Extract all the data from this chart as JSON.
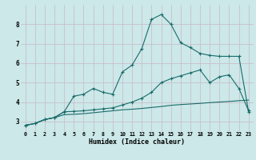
{
  "xlabel": "Humidex (Indice chaleur)",
  "bg_color": "#cce8e8",
  "grid_color": "#c8b8c8",
  "line_color": "#1a6b6b",
  "xlim": [
    -0.5,
    23.5
  ],
  "ylim": [
    2.5,
    9.0
  ],
  "yticks": [
    3,
    4,
    5,
    6,
    7,
    8
  ],
  "xticks": [
    0,
    1,
    2,
    3,
    4,
    5,
    6,
    7,
    8,
    9,
    10,
    11,
    12,
    13,
    14,
    15,
    16,
    17,
    18,
    19,
    20,
    21,
    22,
    23
  ],
  "line1_x": [
    0,
    1,
    2,
    3,
    4,
    5,
    6,
    7,
    8,
    9,
    10,
    11,
    12,
    13,
    14,
    15,
    16,
    17,
    18,
    19,
    20,
    21,
    22,
    23
  ],
  "line1_y": [
    2.8,
    2.9,
    3.1,
    3.2,
    3.35,
    3.37,
    3.4,
    3.45,
    3.5,
    3.55,
    3.6,
    3.63,
    3.67,
    3.72,
    3.77,
    3.83,
    3.87,
    3.9,
    3.93,
    3.97,
    4.0,
    4.03,
    4.07,
    4.1
  ],
  "line2_x": [
    0,
    1,
    2,
    3,
    4,
    5,
    6,
    7,
    8,
    9,
    10,
    11,
    12,
    13,
    14,
    15,
    16,
    17,
    18,
    19,
    20,
    21,
    22,
    23
  ],
  "line2_y": [
    2.8,
    2.9,
    3.1,
    3.2,
    3.5,
    3.52,
    3.55,
    3.6,
    3.65,
    3.7,
    3.85,
    4.0,
    4.2,
    4.5,
    5.0,
    5.2,
    5.35,
    5.5,
    5.65,
    5.0,
    5.3,
    5.4,
    4.7,
    3.55
  ],
  "line3_x": [
    0,
    1,
    2,
    3,
    4,
    5,
    6,
    7,
    8,
    9,
    10,
    11,
    12,
    13,
    14,
    15,
    16,
    17,
    18,
    19,
    20,
    21,
    22,
    23
  ],
  "line3_y": [
    2.8,
    2.9,
    3.1,
    3.2,
    3.5,
    4.3,
    4.4,
    4.7,
    4.5,
    4.4,
    5.55,
    5.9,
    6.75,
    8.25,
    8.5,
    8.0,
    7.05,
    6.8,
    6.5,
    6.4,
    6.35,
    6.35,
    6.35,
    3.5
  ]
}
